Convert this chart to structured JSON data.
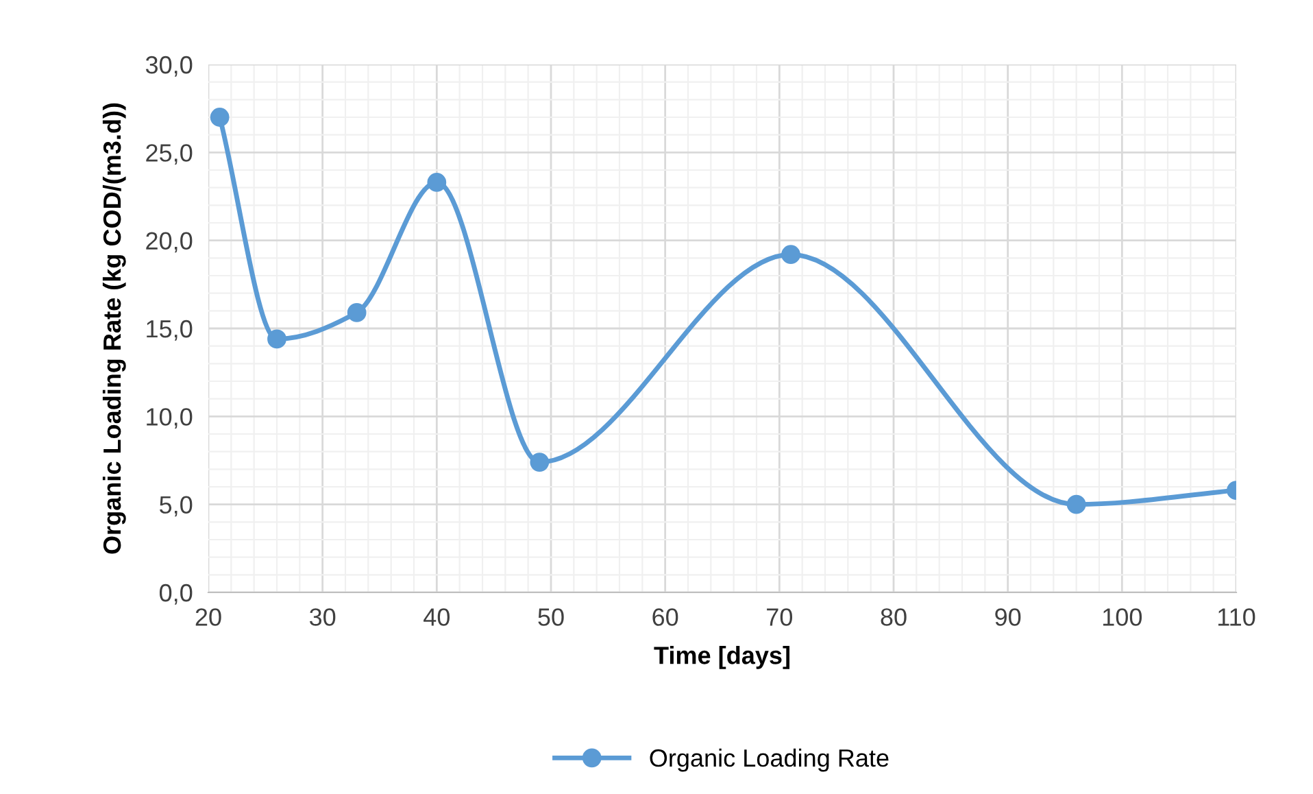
{
  "chart_data": {
    "type": "line",
    "xlabel": "Time [days]",
    "ylabel": "Organic Loading Rate (kg COD/(m3.d))",
    "series": [
      {
        "name": "Organic Loading Rate",
        "color": "#5b9bd5",
        "x": [
          21,
          26,
          33,
          40,
          49,
          71,
          96,
          110
        ],
        "values": [
          27.0,
          14.4,
          15.9,
          23.3,
          7.4,
          19.2,
          5.0,
          5.8
        ]
      }
    ],
    "xlim": [
      20,
      110
    ],
    "xticks": [
      20,
      30,
      40,
      50,
      60,
      70,
      80,
      90,
      100,
      110
    ],
    "ylim": [
      0,
      30
    ],
    "yticks": [
      {
        "value": 0,
        "label": "0,0"
      },
      {
        "value": 5,
        "label": "5,0"
      },
      {
        "value": 10,
        "label": "10,0"
      },
      {
        "value": 15,
        "label": "15,0"
      },
      {
        "value": 20,
        "label": "20,0"
      },
      {
        "value": 25,
        "label": "25,0"
      },
      {
        "value": 30,
        "label": "30,0"
      }
    ],
    "grid": true,
    "legend": "bottom",
    "marker": "circle",
    "line_style": "solid"
  }
}
